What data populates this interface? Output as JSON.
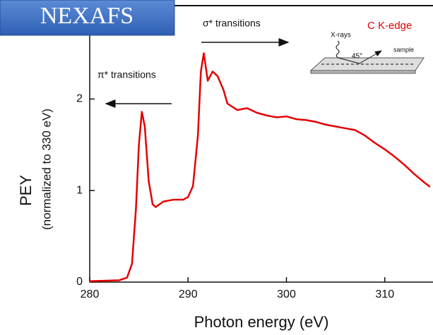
{
  "chart_data": {
    "type": "line",
    "badge": "NEXAFS",
    "xlabel": "Photon energy (eV)",
    "ylabel": "PEY",
    "ylabel_note": "(normalized to 330 eV)",
    "annotations": [
      "σ* transitions",
      "π* transitions",
      "C K-edge",
      "X-rays",
      "45°",
      "sample"
    ],
    "xlim": [
      280,
      314.9
    ],
    "ylim": [
      0,
      3.02
    ],
    "xticks": [
      280,
      290,
      300,
      310
    ],
    "yticks": [
      0,
      1,
      2
    ],
    "series": [
      {
        "color": "#e30000",
        "x": [
          280,
          283,
          283.8,
          284.3,
          284.7,
          285.0,
          285.3,
          285.6,
          286.0,
          286.4,
          286.7,
          287.5,
          288.5,
          289.5,
          290.0,
          290.5,
          291.0,
          291.3,
          291.6,
          292.0,
          292.5,
          293.0,
          293.6,
          294.0,
          295,
          296,
          297,
          298,
          299,
          300,
          301,
          302,
          303,
          304,
          305,
          306,
          307,
          308,
          309,
          310,
          311,
          312,
          313,
          314,
          314.6
        ],
        "values": [
          0.01,
          0.02,
          0.05,
          0.2,
          0.8,
          1.5,
          1.86,
          1.7,
          1.1,
          0.85,
          0.82,
          0.88,
          0.9,
          0.9,
          0.93,
          1.05,
          1.6,
          2.3,
          2.5,
          2.2,
          2.3,
          2.25,
          2.1,
          1.95,
          1.88,
          1.9,
          1.85,
          1.82,
          1.8,
          1.81,
          1.78,
          1.77,
          1.75,
          1.72,
          1.7,
          1.68,
          1.66,
          1.6,
          1.52,
          1.45,
          1.37,
          1.28,
          1.18,
          1.09,
          1.04
        ]
      }
    ]
  }
}
